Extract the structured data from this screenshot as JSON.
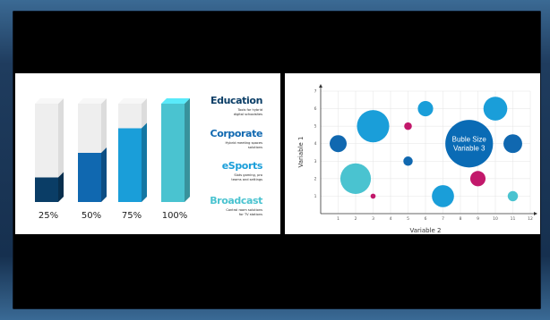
{
  "slides": {
    "progress": {
      "bars": [
        {
          "label": "25%",
          "value": 0.25,
          "fill": "#0a3d66"
        },
        {
          "label": "50%",
          "value": 0.5,
          "fill": "#1068b0"
        },
        {
          "label": "75%",
          "value": 0.75,
          "fill": "#1a9ed9"
        },
        {
          "label": "100%",
          "value": 1.0,
          "fill": "#4ac3d0"
        }
      ],
      "segments": [
        {
          "title": "Education",
          "sub1": "Tools for hybrid",
          "sub2": "digital schoolsites",
          "color": "#0a3d66"
        },
        {
          "title": "Corporate",
          "sub1": "Hybrid meeting spaces",
          "sub2": "solutions",
          "color": "#1068b0"
        },
        {
          "title": "eSports",
          "sub1": "Slots gaming, pro",
          "sub2": "teams and settings",
          "color": "#1a9ed9"
        },
        {
          "title": "Broadcast",
          "sub1": "Control room solutions",
          "sub2": "for TV stations",
          "color": "#4ac3d0"
        }
      ]
    },
    "bubble": {
      "x_ticks": [
        "1",
        "2",
        "3",
        "4",
        "5",
        "6",
        "7",
        "8",
        "9",
        "10",
        "11",
        "12"
      ],
      "y_ticks": [
        "1",
        "2",
        "3",
        "4",
        "5",
        "6",
        "7"
      ],
      "xlabel": "Variable 2",
      "ylabel": "Variable 1",
      "big_label_1": "Buble Size",
      "big_label_2": "Variable 3"
    }
  },
  "chart_data": {
    "type": "scatter",
    "xlabel": "Variable 2",
    "ylabel": "Variable 1",
    "xlim": [
      0,
      12
    ],
    "ylim": [
      0,
      7
    ],
    "points": [
      {
        "x": 1,
        "y": 4,
        "size": 1.0,
        "color": "#1068b0"
      },
      {
        "x": 2,
        "y": 2,
        "size": 1.8,
        "color": "#4ac3d0"
      },
      {
        "x": 3,
        "y": 5,
        "size": 1.9,
        "color": "#1a9ed9"
      },
      {
        "x": 3,
        "y": 1,
        "size": 0.3,
        "color": "#c2186b"
      },
      {
        "x": 5,
        "y": 5,
        "size": 0.45,
        "color": "#c2186b"
      },
      {
        "x": 5,
        "y": 3,
        "size": 0.55,
        "color": "#1068b0"
      },
      {
        "x": 6,
        "y": 6,
        "size": 0.9,
        "color": "#1a9ed9"
      },
      {
        "x": 7,
        "y": 1,
        "size": 1.3,
        "color": "#1a9ed9"
      },
      {
        "x": 8.5,
        "y": 4,
        "size": 2.8,
        "color": "#0a6bb5"
      },
      {
        "x": 9,
        "y": 2,
        "size": 0.9,
        "color": "#c2186b"
      },
      {
        "x": 10,
        "y": 6,
        "size": 1.4,
        "color": "#1a9ed9"
      },
      {
        "x": 11,
        "y": 4,
        "size": 1.1,
        "color": "#1068b0"
      },
      {
        "x": 11,
        "y": 1,
        "size": 0.6,
        "color": "#4ac3d0"
      }
    ]
  }
}
